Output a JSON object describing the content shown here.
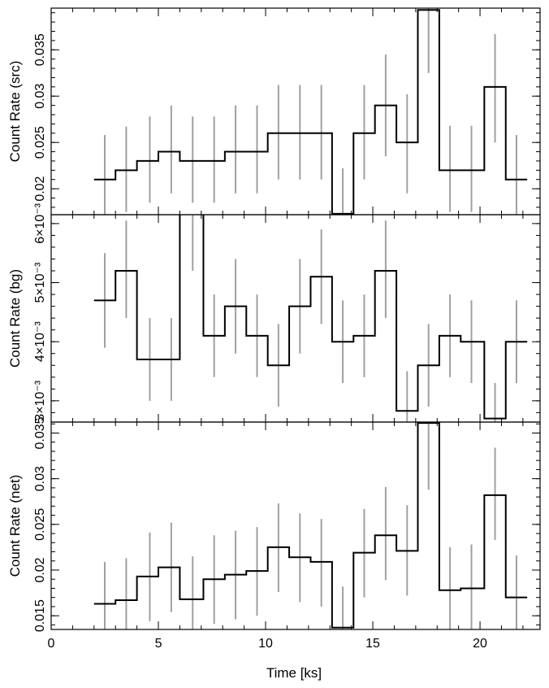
{
  "chart_data": {
    "type": "line",
    "style": "step histogram with vertical error bars",
    "xlabel": "Time [ks]",
    "xlim": [
      0,
      22.8
    ],
    "x_ticks": [
      0,
      5,
      10,
      15,
      20
    ],
    "x_tick_labels": [
      "0",
      "5",
      "10",
      "15",
      "20"
    ],
    "bins": [
      2.0,
      3.0,
      4.0,
      5.0,
      6.0,
      7.1,
      8.1,
      9.1,
      10.1,
      11.1,
      12.1,
      13.1,
      14.1,
      15.1,
      16.1,
      17.1,
      18.1,
      19.1,
      20.2,
      21.2,
      22.2
    ],
    "err_x": [
      2.5,
      3.5,
      4.6,
      5.6,
      6.6,
      7.6,
      8.6,
      9.6,
      10.6,
      11.6,
      12.6,
      13.6,
      14.6,
      15.6,
      16.6,
      17.6,
      18.6,
      19.6,
      20.7,
      21.7
    ],
    "error_color": "#a0a0a0",
    "line_color": "#000000",
    "panels": [
      {
        "ylabel": "Count Rate (src)",
        "ylim": [
          0.0172,
          0.0395
        ],
        "y_ticks": [
          0.02,
          0.025,
          0.03,
          0.035
        ],
        "y_tick_labels": [
          "0.02",
          "0.025",
          "0.03",
          "0.035"
        ],
        "y_minor_step": 0.001,
        "values": [
          0.021,
          0.022,
          0.023,
          0.024,
          0.023,
          0.023,
          0.024,
          0.024,
          0.026,
          0.026,
          0.026,
          0.0173,
          0.026,
          0.029,
          0.025,
          0.0393,
          0.022,
          0.022,
          0.031,
          0.021
        ],
        "err_lo": [
          0.0165,
          0.0175,
          0.0185,
          0.0195,
          0.0185,
          0.0185,
          0.0195,
          0.0195,
          0.021,
          0.021,
          0.021,
          0.0125,
          0.021,
          0.0235,
          0.0195,
          0.0325,
          0.0175,
          0.0175,
          0.025,
          0.0165
        ],
        "err_hi": [
          0.0258,
          0.0267,
          0.0278,
          0.029,
          0.0278,
          0.0278,
          0.029,
          0.029,
          0.0312,
          0.0312,
          0.0312,
          0.0222,
          0.0312,
          0.0345,
          0.0302,
          0.0395,
          0.0268,
          0.0268,
          0.0367,
          0.0258
        ]
      },
      {
        "ylabel": "Count Rate (bg)",
        "ylim": [
          0.00264,
          0.00615
        ],
        "y_ticks": [
          0.003,
          0.004,
          0.005,
          0.006
        ],
        "y_tick_labels": [
          "3×10⁻³",
          "4×10⁻³",
          "5×10⁻³",
          "6×10⁻³"
        ],
        "y_minor_step": 0.0002,
        "values": [
          0.0047,
          0.0052,
          0.0037,
          0.0037,
          0.0062,
          0.0041,
          0.0046,
          0.0041,
          0.0036,
          0.0046,
          0.0051,
          0.004,
          0.0041,
          0.0052,
          0.00283,
          0.0036,
          0.0041,
          0.004,
          0.0027,
          0.004
        ],
        "err_lo": [
          0.0039,
          0.0044,
          0.003,
          0.003,
          0.0052,
          0.0034,
          0.0038,
          0.0034,
          0.0029,
          0.0038,
          0.0043,
          0.0033,
          0.0034,
          0.0044,
          0.0023,
          0.0029,
          0.0034,
          0.0033,
          0.0021,
          0.0033
        ],
        "err_hi": [
          0.0055,
          0.00605,
          0.0044,
          0.0044,
          0.0062,
          0.0048,
          0.0054,
          0.0048,
          0.0043,
          0.0054,
          0.0059,
          0.0047,
          0.0048,
          0.00605,
          0.0035,
          0.0043,
          0.0048,
          0.0047,
          0.0033,
          0.0047
        ]
      },
      {
        "ylabel": "Count Rate (net)",
        "ylim": [
          0.0135,
          0.0362
        ],
        "y_ticks": [
          0.015,
          0.02,
          0.025,
          0.03,
          0.035
        ],
        "y_tick_labels": [
          "0.015",
          "0.02",
          "0.025",
          "0.03",
          "0.035"
        ],
        "y_minor_step": 0.001,
        "values": [
          0.0163,
          0.0167,
          0.0193,
          0.0203,
          0.0168,
          0.019,
          0.0195,
          0.0199,
          0.0225,
          0.0214,
          0.0209,
          0.0137,
          0.0219,
          0.0238,
          0.0221,
          0.0361,
          0.0178,
          0.018,
          0.0282,
          0.017
        ],
        "err_lo": [
          0.0114,
          0.0118,
          0.0144,
          0.0154,
          0.0119,
          0.0141,
          0.0146,
          0.015,
          0.0176,
          0.0165,
          0.016,
          0.0088,
          0.017,
          0.0189,
          0.0172,
          0.0288,
          0.0129,
          0.0131,
          0.0233,
          0.0121
        ],
        "err_hi": [
          0.0209,
          0.0213,
          0.0241,
          0.0252,
          0.0215,
          0.0238,
          0.0243,
          0.0247,
          0.0273,
          0.0262,
          0.0256,
          0.0182,
          0.0267,
          0.0291,
          0.0271,
          0.0362,
          0.0225,
          0.0228,
          0.0334,
          0.0216
        ]
      }
    ]
  }
}
